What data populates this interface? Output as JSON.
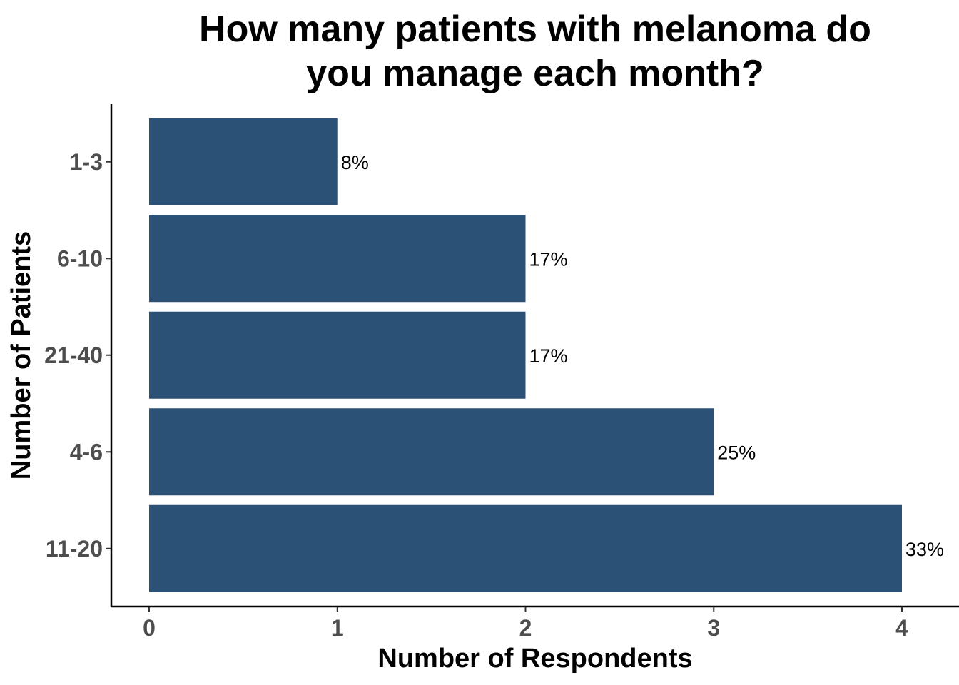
{
  "chart_data": {
    "type": "bar",
    "orientation": "horizontal",
    "title_lines": [
      "How many patients with melanoma do",
      "you manage each month?"
    ],
    "xlabel": "Number of Respondents",
    "ylabel": "Number of Patients",
    "categories": [
      "1-3",
      "6-10",
      "21-40",
      "4-6",
      "11-20"
    ],
    "values": [
      1,
      2,
      2,
      3,
      4
    ],
    "data_labels": [
      "8%",
      "17%",
      "17%",
      "25%",
      "33%"
    ],
    "xlim": [
      -0.2,
      4.3
    ],
    "x_ticks": [
      0,
      1,
      2,
      3,
      4
    ],
    "x_tick_labels": [
      "0",
      "1",
      "2",
      "3",
      "4"
    ],
    "bar_color": "#2c5177",
    "grid": false,
    "legend": "none"
  }
}
